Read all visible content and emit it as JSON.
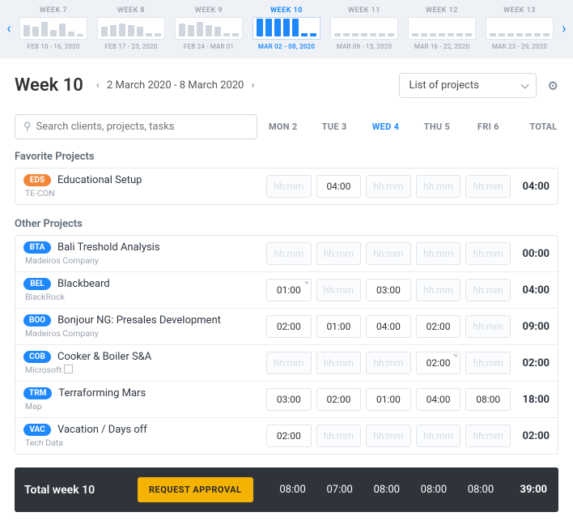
{
  "strip": {
    "weeks": [
      {
        "label": "WEEK 7",
        "range": "FEB 10 - 16, 2020",
        "bars": [
          14,
          12,
          18,
          8,
          16,
          6,
          3
        ],
        "active": false
      },
      {
        "label": "WEEK 8",
        "range": "FEB 17 - 23, 2020",
        "bars": [
          12,
          14,
          16,
          14,
          12,
          4,
          4
        ],
        "active": false
      },
      {
        "label": "WEEK 9",
        "range": "FEB 24 - MAR 01",
        "bars": [
          16,
          14,
          18,
          14,
          12,
          4,
          4
        ],
        "active": false
      },
      {
        "label": "WEEK 10",
        "range": "MAR 02 - 08, 2020",
        "bars": [
          22,
          22,
          22,
          22,
          22,
          4,
          4
        ],
        "active": true
      },
      {
        "label": "WEEK 11",
        "range": "MAR 09 - 15, 2020",
        "bars": [
          4,
          4,
          4,
          4,
          4,
          4,
          4
        ],
        "active": false
      },
      {
        "label": "WEEK 12",
        "range": "MAR 16 - 22, 2020",
        "bars": [
          4,
          4,
          4,
          4,
          4,
          4,
          4
        ],
        "active": false
      },
      {
        "label": "WEEK 13",
        "range": "MAR 23 - 29, 2020",
        "bars": [
          4,
          4,
          4,
          4,
          4,
          4,
          4
        ],
        "active": false
      }
    ]
  },
  "title": {
    "week": "Week 10",
    "range": "2 March 2020 - 8 March 2020"
  },
  "combo": {
    "value": "List of projects"
  },
  "search": {
    "placeholder": "Search clients, projects, tasks"
  },
  "days": [
    "MON 2",
    "TUE 3",
    "WED 4",
    "THU 5",
    "FRI 6"
  ],
  "days_active_index": 2,
  "total_label": "TOTAL",
  "hh_placeholder": "hh:mm",
  "sections": [
    {
      "title": "Favorite Projects",
      "rows": [
        {
          "tag": "EDS",
          "tag_color": "#f2873a",
          "name": "Educational Setup",
          "client": "TE-CON",
          "icon": null,
          "cells": [
            null,
            "04:00",
            null,
            null,
            null
          ],
          "notes": [
            false,
            false,
            false,
            false,
            false
          ],
          "total": "04:00"
        }
      ]
    },
    {
      "title": "Other Projects",
      "rows": [
        {
          "tag": "BTA",
          "tag_color": "#1e88ff",
          "name": "Bali Treshold Analysis",
          "client": "Madeiros Company",
          "icon": null,
          "cells": [
            null,
            null,
            null,
            null,
            null
          ],
          "notes": [
            false,
            false,
            false,
            false,
            false
          ],
          "total": "00:00"
        },
        {
          "tag": "BEL",
          "tag_color": "#1e88ff",
          "name": "Blackbeard",
          "client": "BlackRock",
          "icon": null,
          "cells": [
            "01:00",
            null,
            "03:00",
            null,
            null
          ],
          "notes": [
            true,
            false,
            false,
            false,
            false
          ],
          "total": "04:00"
        },
        {
          "tag": "BOO",
          "tag_color": "#1e88ff",
          "name": "Bonjour NG: Presales Development",
          "client": "Madeiros Company",
          "icon": null,
          "cells": [
            "02:00",
            "01:00",
            "04:00",
            "02:00",
            null
          ],
          "notes": [
            false,
            false,
            false,
            false,
            false
          ],
          "total": "09:00"
        },
        {
          "tag": "COB",
          "tag_color": "#1e88ff",
          "name": "Cooker & Boiler S&A",
          "client": "Microsoft",
          "icon": "copy",
          "cells": [
            null,
            null,
            null,
            "02:00",
            null
          ],
          "notes": [
            false,
            false,
            false,
            true,
            false
          ],
          "total": "02:00"
        },
        {
          "tag": "TRM",
          "tag_color": "#1e88ff",
          "name": "Terraforming Mars",
          "client": "Map",
          "icon": null,
          "cells": [
            "03:00",
            "02:00",
            "01:00",
            "04:00",
            "08:00"
          ],
          "notes": [
            false,
            false,
            false,
            false,
            false
          ],
          "total": "18:00"
        },
        {
          "tag": "VAC",
          "tag_color": "#1e88ff",
          "name": "Vacation / Days off",
          "client": "Tech Data",
          "icon": null,
          "cells": [
            "02:00",
            null,
            null,
            null,
            null
          ],
          "notes": [
            false,
            false,
            false,
            false,
            false
          ],
          "total": "02:00"
        }
      ]
    }
  ],
  "footer": {
    "label": "Total week 10",
    "button": "REQUEST APPROVAL",
    "cells": [
      "08:00",
      "07:00",
      "08:00",
      "08:00",
      "08:00"
    ],
    "total": "39:00"
  }
}
